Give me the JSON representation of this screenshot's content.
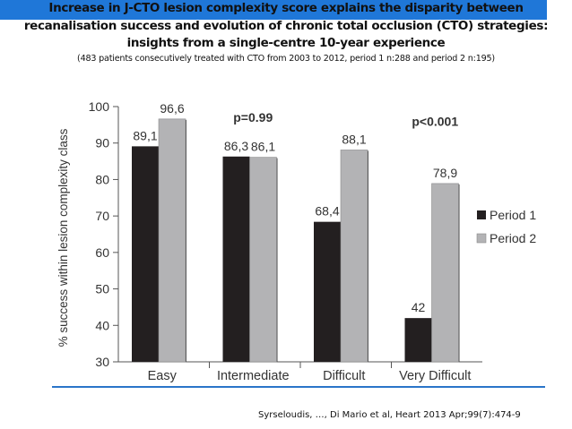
{
  "slide": {
    "title_lines": [
      "Increase in J-CTO lesion complexity score explains the disparity between",
      "recanalisation success and evolution of chronic total occlusion (CTO) strategies:",
      "insights from a single-centre 10-year experience"
    ],
    "subtitle": "(483 patients consecutively treated with CTO from 2003 to 2012, period 1 n:288 and period 2 n:195)",
    "citation": "Syrseloudis, …, Di Mario  et al, Heart 2013 Apr;99(7):474-9",
    "accent_color": "#1f77d8"
  },
  "chart_data": {
    "type": "bar",
    "ylabel": "% success within lesion complexity class",
    "ylim": [
      30,
      100
    ],
    "yticks": [
      30,
      40,
      50,
      60,
      70,
      80,
      90,
      100
    ],
    "categories": [
      "Easy",
      "Intermediate",
      "Difficult",
      "Very Difficult"
    ],
    "series": [
      {
        "name": "Period 1",
        "color": "#231f20",
        "values": [
          89.1,
          86.3,
          68.4,
          42
        ],
        "labels": [
          "89,1",
          "86,3",
          "68,4",
          "42"
        ]
      },
      {
        "name": "Period 2",
        "color": "#b3b3b5",
        "values": [
          96.6,
          86.1,
          88.1,
          78.9
        ],
        "labels": [
          "96,6",
          "86,1",
          "88,1",
          "78,9"
        ]
      }
    ],
    "annotations": [
      {
        "text": "p=0.99",
        "category": "Intermediate",
        "y": 97
      },
      {
        "text": "p<0.001",
        "category": "Very Difficult",
        "y": 96
      }
    ],
    "legend_position": "right"
  }
}
